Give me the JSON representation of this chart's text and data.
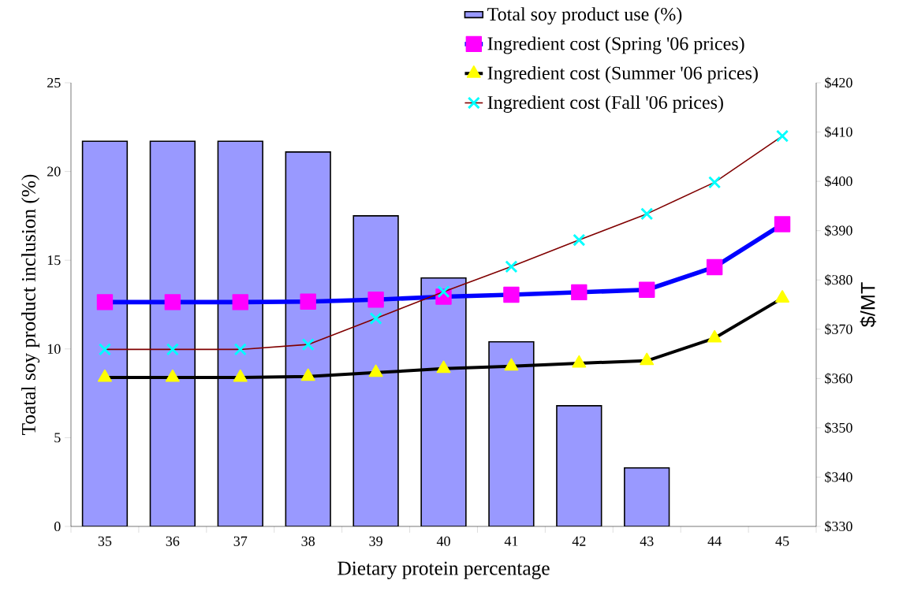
{
  "chart_data": {
    "type": "bar",
    "xlabel": "Dietary protein percentage",
    "ylabel": "Toatal soy product inclusion (%)",
    "y2label": "$/MT",
    "categories": [
      "35",
      "36",
      "37",
      "38",
      "39",
      "40",
      "41",
      "42",
      "43",
      "44",
      "45"
    ],
    "ylim": [
      0,
      25
    ],
    "yticks": [
      0,
      5,
      10,
      15,
      20,
      25
    ],
    "y2lim": [
      330,
      420
    ],
    "y2ticks": [
      {
        "value": 330,
        "label": "$330"
      },
      {
        "value": 340,
        "label": "$340"
      },
      {
        "value": 350,
        "label": "$350"
      },
      {
        "value": 360,
        "label": "$360"
      },
      {
        "value": 370,
        "label": "$370"
      },
      {
        "value": 380,
        "label": "$380"
      },
      {
        "value": 390,
        "label": "$390"
      },
      {
        "value": 400,
        "label": "$400"
      },
      {
        "value": 410,
        "label": "$410"
      },
      {
        "value": 420,
        "label": "$420"
      }
    ],
    "legend": "top right",
    "series": [
      {
        "name": "Total soy product use (%)",
        "color": "#9999ff",
        "values": [
          21.7,
          21.7,
          21.7,
          21.1,
          17.5,
          14.0,
          10.4,
          6.8,
          3.3,
          null,
          null
        ]
      },
      {
        "name": "Ingredient cost (Spring '06 prices)",
        "type": "line",
        "axis": "y2",
        "color": "#0000ff",
        "marker": "square",
        "values": [
          375.5,
          375.5,
          375.5,
          375.6,
          376.0,
          376.6,
          377.0,
          377.5,
          378.0,
          382.6,
          391.3
        ]
      },
      {
        "name": "Ingredient cost (Summer '06 prices)",
        "type": "line",
        "axis": "y2",
        "color": "#000000",
        "marker": "triangle",
        "values": [
          360.2,
          360.2,
          360.2,
          360.4,
          361.2,
          362.0,
          362.5,
          363.1,
          363.6,
          368.2,
          376.3
        ]
      },
      {
        "name": "Ingredient cost (Fall '06 prices)",
        "type": "line",
        "axis": "y2",
        "color": "#800000",
        "marker": "cross",
        "values": [
          365.9,
          365.9,
          365.9,
          366.9,
          372.2,
          377.6,
          382.7,
          388.1,
          393.4,
          399.8,
          409.2
        ]
      }
    ]
  }
}
